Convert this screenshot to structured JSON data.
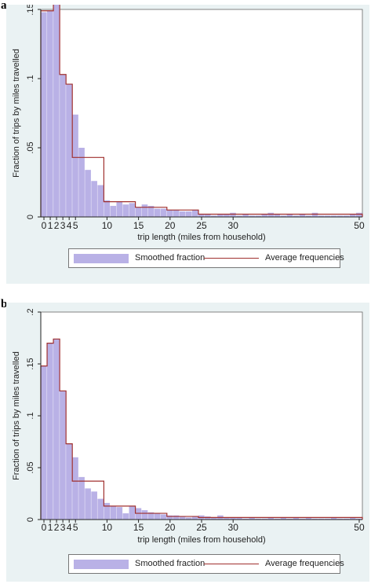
{
  "chart_data": [
    {
      "panel": "a",
      "type": "bar",
      "xlabel": "trip length (miles from household)",
      "ylabel": "Fraction of trips by miles travelled",
      "xlim": [
        0,
        51
      ],
      "ylim": [
        0,
        0.15
      ],
      "xticks": [
        "0",
        "1",
        "2",
        "3",
        "4",
        "5",
        "10",
        "15",
        "20",
        "25",
        "30",
        "50"
      ],
      "yticks": [
        "0",
        ".05",
        ".1",
        ".15"
      ],
      "grid": false,
      "legend": "bottom",
      "series": [
        {
          "name": "Smoothed fraction",
          "kind": "bars",
          "x": [
            0,
            1,
            2,
            3,
            4,
            5,
            6,
            7,
            8,
            9,
            10,
            11,
            12,
            13,
            14,
            15,
            16,
            17,
            18,
            19,
            20,
            21,
            22,
            23,
            24,
            25,
            26,
            27,
            28,
            29,
            30,
            31,
            32,
            33,
            34,
            35,
            36,
            37,
            38,
            39,
            40,
            41,
            42,
            43,
            44,
            45,
            46,
            47,
            48,
            49,
            50
          ],
          "values": [
            0.148,
            0.149,
            0.157,
            0.103,
            0.096,
            0.074,
            0.05,
            0.034,
            0.026,
            0.023,
            0.012,
            0.008,
            0.011,
            0.009,
            0.01,
            0.007,
            0.009,
            0.008,
            0.006,
            0.006,
            0.005,
            0.005,
            0.004,
            0.004,
            0.005,
            0.002,
            0.002,
            0.001,
            0.002,
            0.002,
            0.003,
            0.001,
            0.002,
            0.001,
            0.001,
            0.002,
            0.003,
            0.002,
            0.001,
            0.002,
            0.001,
            0.002,
            0.001,
            0.003,
            0.001,
            0.001,
            0.001,
            0.001,
            0.001,
            0.002,
            0.003
          ]
        },
        {
          "name": "Average frequencies",
          "kind": "step",
          "points": [
            [
              0,
              0.149
            ],
            [
              2,
              0.157
            ],
            [
              3,
              0.103
            ],
            [
              4,
              0.096
            ],
            [
              5,
              0.043
            ],
            [
              10,
              0.011
            ],
            [
              15,
              0.007
            ],
            [
              20,
              0.005
            ],
            [
              25,
              0.002
            ],
            [
              30,
              0.002
            ],
            [
              50,
              0.002
            ]
          ],
          "x_end": 51
        }
      ]
    },
    {
      "panel": "b",
      "type": "bar",
      "xlabel": "trip length (miles from household)",
      "ylabel": "Fraction of trips by miles travelled",
      "xlim": [
        0,
        51
      ],
      "ylim": [
        0,
        0.2
      ],
      "xticks": [
        "0",
        "1",
        "2",
        "3",
        "4",
        "5",
        "10",
        "15",
        "20",
        "25",
        "30",
        "50"
      ],
      "yticks": [
        "0",
        ".05",
        ".1",
        ".15",
        ".2"
      ],
      "grid": false,
      "legend": "bottom",
      "series": [
        {
          "name": "Smoothed fraction",
          "kind": "bars",
          "x": [
            0,
            1,
            2,
            3,
            4,
            5,
            6,
            7,
            8,
            9,
            10,
            11,
            12,
            13,
            14,
            15,
            16,
            17,
            18,
            19,
            20,
            21,
            22,
            23,
            24,
            25,
            26,
            27,
            28,
            29,
            30,
            31,
            32,
            33,
            34,
            35,
            36,
            37,
            38,
            39,
            40,
            41,
            42,
            43,
            44,
            45,
            46,
            47,
            48,
            49,
            50
          ],
          "values": [
            0.148,
            0.17,
            0.174,
            0.124,
            0.073,
            0.06,
            0.041,
            0.03,
            0.027,
            0.02,
            0.016,
            0.013,
            0.012,
            0.006,
            0.013,
            0.011,
            0.009,
            0.007,
            0.006,
            0.005,
            0.004,
            0.004,
            0.003,
            0.002,
            0.003,
            0.004,
            0.003,
            0.002,
            0.004,
            0.002,
            0.002,
            0.002,
            0.001,
            0.002,
            0.001,
            0.001,
            0.002,
            0.001,
            0.002,
            0.001,
            0.002,
            0.001,
            0.002,
            0.001,
            0.001,
            0.001,
            0.002,
            0.001,
            0.001,
            0.002,
            0.001
          ]
        },
        {
          "name": "Average frequencies",
          "kind": "step",
          "points": [
            [
              0,
              0.148
            ],
            [
              1,
              0.17
            ],
            [
              2,
              0.174
            ],
            [
              3,
              0.124
            ],
            [
              4,
              0.073
            ],
            [
              5,
              0.037
            ],
            [
              10,
              0.013
            ],
            [
              15,
              0.006
            ],
            [
              20,
              0.003
            ],
            [
              25,
              0.002
            ],
            [
              30,
              0.002
            ],
            [
              50,
              0.002
            ]
          ],
          "x_end": 51
        }
      ]
    }
  ],
  "panels": [
    {
      "label": "a"
    },
    {
      "label": "b"
    }
  ],
  "colors": {
    "bar_fill": "#b9b1e6",
    "step_line": "#a0302f",
    "plot_bg": "#ffffff",
    "outer_bg": "#eaf2f3"
  }
}
